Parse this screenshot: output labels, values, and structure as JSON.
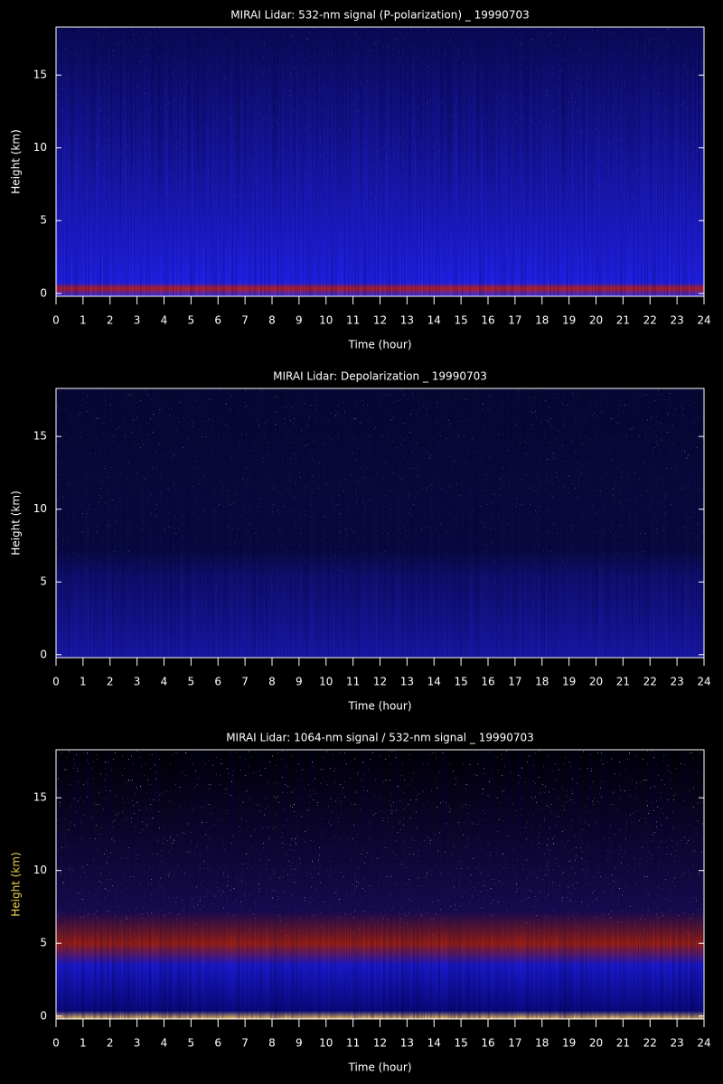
{
  "chart_data": [
    {
      "type": "heatmap",
      "title": "MIRAI Lidar: 532-nm signal (P-polarization) _ 19990703",
      "xlabel": "Time (hour)",
      "ylabel": "Height (km)",
      "xlim": [
        0,
        24
      ],
      "xticks": [
        0,
        1,
        2,
        3,
        4,
        5,
        6,
        7,
        8,
        9,
        10,
        11,
        12,
        13,
        14,
        15,
        16,
        17,
        18,
        19,
        20,
        21,
        22,
        23,
        24
      ],
      "ylim": [
        -0.2,
        18.3
      ],
      "yticks": [
        0,
        5,
        10,
        15
      ],
      "ylabel_color": "#ffffff"
    },
    {
      "type": "heatmap",
      "title": "MIRAI Lidar: Depolarization _ 19990703",
      "xlabel": "Time (hour)",
      "ylabel": "Height (km)",
      "xlim": [
        0,
        24
      ],
      "xticks": [
        0,
        1,
        2,
        3,
        4,
        5,
        6,
        7,
        8,
        9,
        10,
        11,
        12,
        13,
        14,
        15,
        16,
        17,
        18,
        19,
        20,
        21,
        22,
        23,
        24
      ],
      "ylim": [
        -0.2,
        18.3
      ],
      "yticks": [
        0,
        5,
        10,
        15
      ],
      "ylabel_color": "#ffffff"
    },
    {
      "type": "heatmap",
      "title": "MIRAI Lidar: 1064-nm signal / 532-nm signal _ 19990703",
      "xlabel": "Time (hour)",
      "ylabel": "Height (km)",
      "xlim": [
        0,
        24
      ],
      "xticks": [
        0,
        1,
        2,
        3,
        4,
        5,
        6,
        7,
        8,
        9,
        10,
        11,
        12,
        13,
        14,
        15,
        16,
        17,
        18,
        19,
        20,
        21,
        22,
        23,
        24
      ],
      "ylim": [
        -0.2,
        18.3
      ],
      "yticks": [
        0,
        5,
        10,
        15
      ],
      "ylabel_color": "#e8d04a"
    }
  ]
}
